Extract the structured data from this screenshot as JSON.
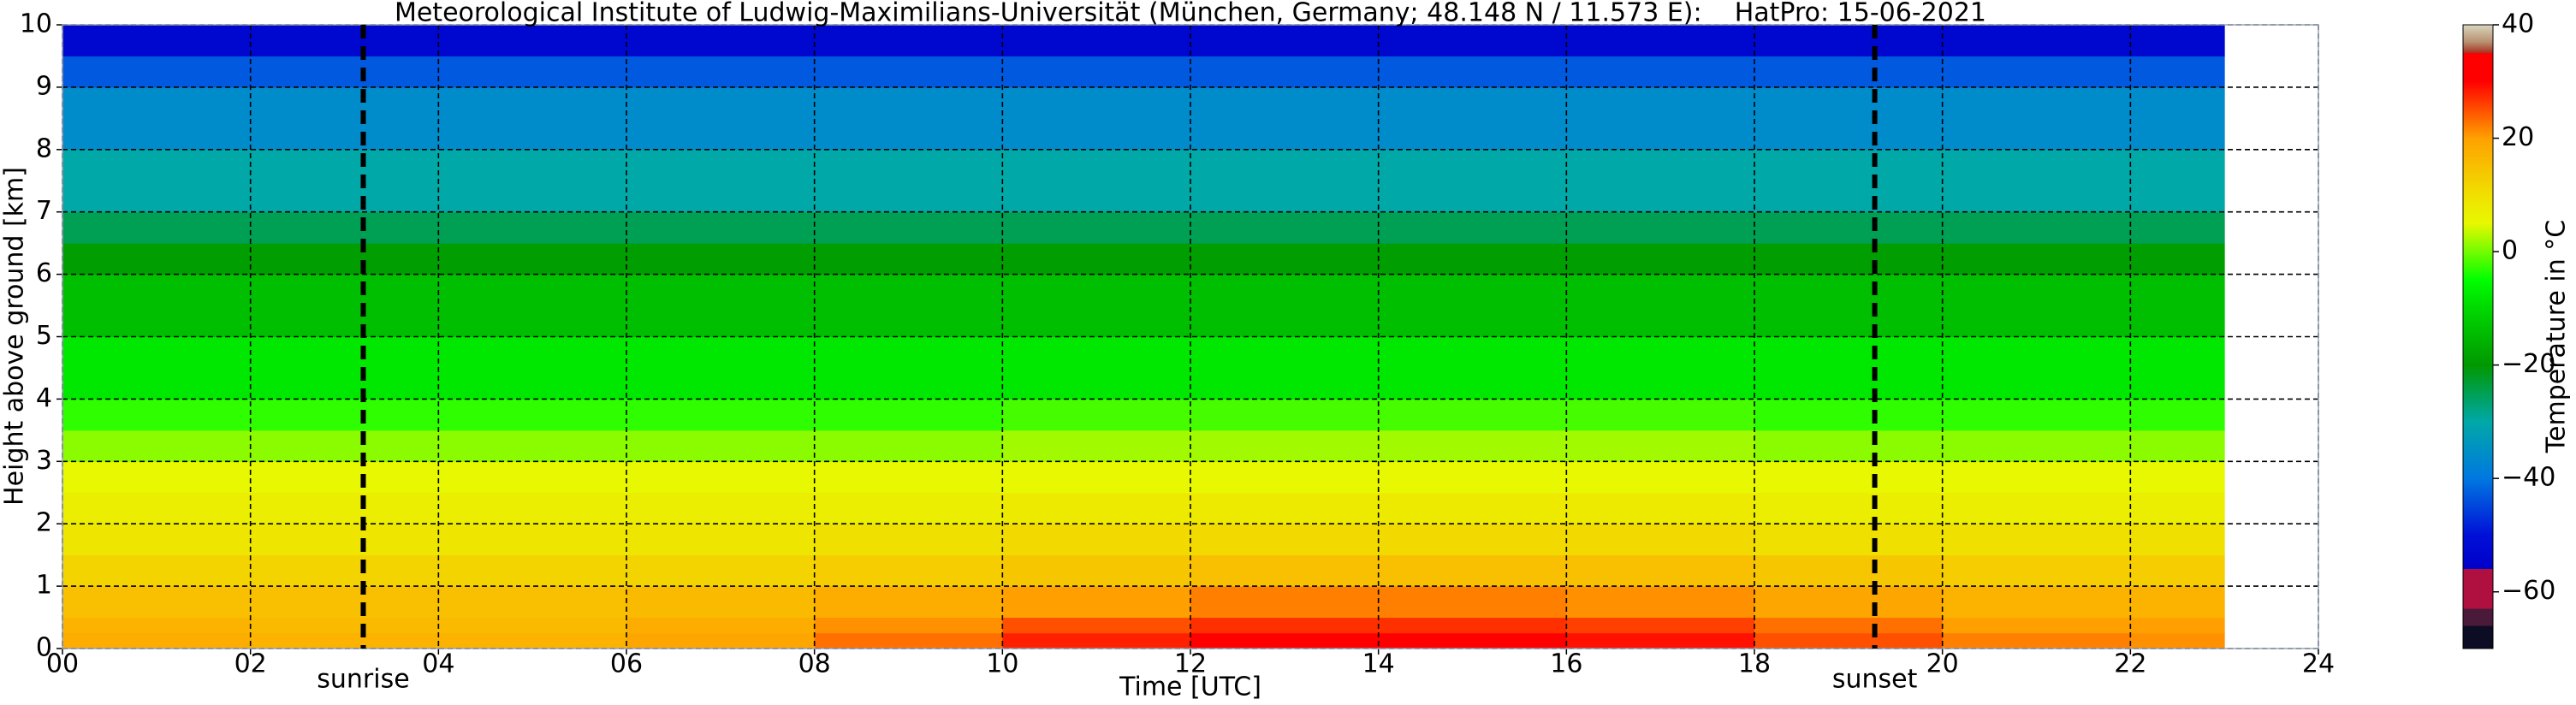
{
  "chart_data": {
    "type": "heatmap",
    "title": "Meteorological Institute of Ludwig-Maximilians-Universität (München, Germany; 48.148 N / 11.573 E):    HatPro: 15-06-2021",
    "xlabel": "Time [UTC]",
    "ylabel": "Height above ground [km]",
    "colorbar_label": "Temperature in °C",
    "x_bins": [
      0,
      2,
      4,
      6,
      8,
      10,
      12,
      14,
      16,
      18,
      20,
      22,
      23
    ],
    "y_bins": [
      0,
      0.25,
      0.5,
      1,
      1.5,
      2,
      2.5,
      3,
      3.5,
      4,
      5,
      6,
      6.5,
      7,
      8,
      9,
      9.5,
      10
    ],
    "z": [
      [
        18,
        17,
        17,
        19,
        23,
        28,
        30,
        30,
        29,
        25,
        22,
        21
      ],
      [
        17,
        16,
        16,
        18,
        21,
        25,
        27,
        27,
        26,
        23,
        20,
        20
      ],
      [
        15,
        15,
        15,
        16,
        18,
        20,
        22,
        22,
        21,
        19,
        17,
        17
      ],
      [
        12,
        12,
        12,
        12,
        13,
        14,
        15,
        15,
        15,
        14,
        13,
        13
      ],
      [
        9,
        9,
        9,
        9,
        10,
        11,
        11,
        11,
        11,
        10,
        10,
        10
      ],
      [
        7,
        7,
        7,
        7,
        7,
        8,
        8,
        8,
        8,
        7,
        7,
        7
      ],
      [
        5,
        5,
        5,
        5,
        5,
        5,
        5,
        5,
        5,
        5,
        5,
        5
      ],
      [
        1,
        1,
        1,
        1,
        1,
        2,
        2,
        2,
        2,
        1,
        1,
        1
      ],
      [
        -3,
        -3,
        -3,
        -3,
        -3,
        -2,
        -2,
        -2,
        -2,
        -3,
        -3,
        -3
      ],
      [
        -8,
        -8,
        -8,
        -8,
        -8,
        -8,
        -8,
        -8,
        -8,
        -8,
        -8,
        -8
      ],
      [
        -14,
        -14,
        -14,
        -14,
        -14,
        -14,
        -14,
        -14,
        -14,
        -14,
        -14,
        -14
      ],
      [
        -19,
        -19,
        -19,
        -19,
        -19,
        -19,
        -19,
        -19,
        -19,
        -19,
        -19,
        -19
      ],
      [
        -25,
        -25,
        -25,
        -25,
        -25,
        -25,
        -25,
        -25,
        -25,
        -25,
        -25,
        -25
      ],
      [
        -30,
        -30,
        -30,
        -30,
        -30,
        -30,
        -30,
        -30,
        -30,
        -30,
        -30,
        -30
      ],
      [
        -36,
        -36,
        -36,
        -36,
        -36,
        -36,
        -36,
        -36,
        -36,
        -36,
        -36,
        -36
      ],
      [
        -43,
        -43,
        -43,
        -43,
        -43,
        -43,
        -43,
        -43,
        -43,
        -43,
        -43,
        -43
      ],
      [
        -53,
        -53,
        -53,
        -53,
        -53,
        -53,
        -53,
        -53,
        -53,
        -53,
        -53,
        -53
      ]
    ],
    "xlim": [
      0,
      24
    ],
    "xticks": [
      {
        "value": 0,
        "label": "00"
      },
      {
        "value": 2,
        "label": "02"
      },
      {
        "value": 4,
        "label": "04"
      },
      {
        "value": 6,
        "label": "06"
      },
      {
        "value": 8,
        "label": "08"
      },
      10,
      12,
      14,
      16,
      18,
      20,
      22,
      24
    ],
    "ylim": [
      0,
      10
    ],
    "yticks": [
      0,
      1,
      2,
      3,
      4,
      5,
      6,
      7,
      8,
      9,
      10
    ],
    "zlim": [
      -70,
      40
    ],
    "zticks": [
      {
        "value": -60,
        "label": "−60"
      },
      {
        "value": -40,
        "label": "−40"
      },
      {
        "value": -20,
        "label": "−20"
      },
      0,
      20,
      40
    ],
    "colorscale": [
      [
        -70,
        "#0c0c24"
      ],
      [
        -66,
        "#0c0c24"
      ],
      [
        -66,
        "#4a1a3a"
      ],
      [
        -63,
        "#4a1a3a"
      ],
      [
        -63,
        "#b01040"
      ],
      [
        -56,
        "#b01040"
      ],
      [
        -56,
        "#0000c8"
      ],
      [
        -50,
        "#0010d8"
      ],
      [
        -40,
        "#0078e0"
      ],
      [
        -30,
        "#00a8a8"
      ],
      [
        -20,
        "#009800"
      ],
      [
        -10,
        "#00d800"
      ],
      [
        -5,
        "#00ff00"
      ],
      [
        5,
        "#e8f800"
      ],
      [
        10,
        "#f0e000"
      ],
      [
        20,
        "#ffa000"
      ],
      [
        30,
        "#ff0000"
      ],
      [
        35,
        "#ff0000"
      ],
      [
        35,
        "#a83020"
      ],
      [
        37,
        "#b89070"
      ],
      [
        40,
        "#d8d8c0"
      ]
    ],
    "grid": true,
    "annotations": [
      {
        "text": "sunrise",
        "x": 3.2
      },
      {
        "text": "sunset",
        "x": 19.28
      }
    ]
  }
}
